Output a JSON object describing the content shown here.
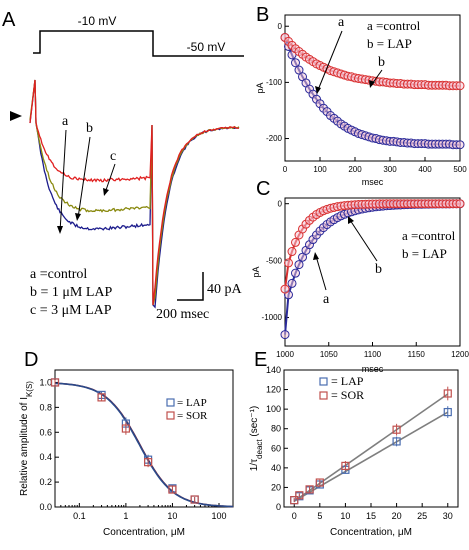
{
  "panels": {
    "A": {
      "label": "A",
      "protocol": {
        "step_label": "-10 mV",
        "hold_label": "-50 mV"
      },
      "trace_labels": [
        "a",
        "b",
        "c"
      ],
      "legend": [
        "a =control",
        "b = 1 μM LAP",
        "c = 3 μM LAP"
      ],
      "scale_current": "40 pA",
      "scale_time": "200 msec",
      "colors": {
        "a": "#1c1c8c",
        "b": "#8a8a10",
        "c": "#e02020"
      }
    },
    "B": {
      "label": "B",
      "legend": [
        "a =control",
        "b = LAP"
      ],
      "curve_labels": [
        "a",
        "b"
      ]
    },
    "C": {
      "label": "C",
      "legend": [
        "a =control",
        "b = LAP"
      ],
      "curve_labels": [
        "a",
        "b"
      ]
    },
    "D": {
      "label": "D",
      "legend": [
        "LAP",
        "SOR"
      ]
    },
    "E": {
      "label": "E",
      "legend": [
        "LAP",
        "SOR"
      ]
    }
  },
  "chart_data": [
    {
      "panel": "B",
      "type": "scatter",
      "xlabel": "msec",
      "ylabel": "pA",
      "xlim": [
        0,
        500
      ],
      "ylim": [
        -240,
        20
      ],
      "xticks": [
        0,
        100,
        200,
        300,
        400,
        500
      ],
      "yticks": [
        0,
        -100,
        -200
      ],
      "series": [
        {
          "name": "a",
          "color": "#2a2a9a",
          "x": [
            0,
            10,
            20,
            30,
            40,
            50,
            60,
            70,
            80,
            90,
            100,
            110,
            120,
            130,
            140,
            150,
            160,
            170,
            180,
            190,
            200,
            210,
            220,
            230,
            240,
            250,
            260,
            270,
            280,
            290,
            300,
            310,
            320,
            330,
            340,
            350,
            360,
            370,
            380,
            390,
            400,
            410,
            420,
            430,
            440,
            450,
            460,
            470,
            480,
            490,
            500
          ],
          "y": [
            -20,
            -36,
            -51,
            -65,
            -78,
            -90,
            -101,
            -112,
            -121,
            -130,
            -138,
            -146,
            -152,
            -159,
            -164,
            -169,
            -174,
            -178,
            -182,
            -185,
            -188,
            -191,
            -193,
            -195,
            -197,
            -199,
            -200,
            -202,
            -203,
            -204,
            -205,
            -205,
            -206,
            -207,
            -207,
            -208,
            -208,
            -209,
            -209,
            -209,
            -209,
            -210,
            -210,
            -210,
            -210,
            -210,
            -210,
            -210,
            -211,
            -211,
            -211
          ]
        },
        {
          "name": "b",
          "color": "#d93030",
          "x": [
            0,
            10,
            20,
            30,
            40,
            50,
            60,
            70,
            80,
            90,
            100,
            110,
            120,
            130,
            140,
            150,
            160,
            170,
            180,
            190,
            200,
            210,
            220,
            230,
            240,
            250,
            260,
            270,
            280,
            290,
            300,
            310,
            320,
            330,
            340,
            350,
            360,
            370,
            380,
            390,
            400,
            410,
            420,
            430,
            440,
            450,
            460,
            470,
            480,
            490,
            500
          ],
          "y": [
            -20,
            -27,
            -34,
            -40,
            -45,
            -50,
            -55,
            -59,
            -63,
            -67,
            -70,
            -73,
            -76,
            -79,
            -81,
            -83,
            -85,
            -87,
            -89,
            -90,
            -92,
            -93,
            -94,
            -95,
            -96,
            -97,
            -98,
            -99,
            -99,
            -100,
            -101,
            -101,
            -102,
            -102,
            -103,
            -103,
            -103,
            -104,
            -104,
            -104,
            -104,
            -105,
            -105,
            -105,
            -105,
            -105,
            -105,
            -106,
            -106,
            -106,
            -106
          ]
        }
      ]
    },
    {
      "panel": "C",
      "type": "scatter",
      "xlabel": "msec",
      "ylabel": "pA",
      "xlim": [
        1000,
        1200
      ],
      "ylim": [
        -1250,
        50
      ],
      "xticks": [
        1000,
        1050,
        1100,
        1150,
        1200
      ],
      "yticks": [
        0,
        -500,
        -1000
      ],
      "series": [
        {
          "name": "a",
          "color": "#2a2a9a",
          "x": [
            1000,
            1004,
            1008,
            1012,
            1016,
            1020,
            1024,
            1028,
            1032,
            1036,
            1040,
            1044,
            1048,
            1052,
            1056,
            1060,
            1064,
            1068,
            1072,
            1076,
            1080,
            1084,
            1088,
            1092,
            1096,
            1100,
            1104,
            1108,
            1112,
            1116,
            1120,
            1124,
            1128,
            1132,
            1136,
            1140,
            1144,
            1148,
            1152,
            1156,
            1160,
            1164,
            1168,
            1172,
            1176,
            1180,
            1184,
            1188,
            1192,
            1196,
            1200
          ],
          "y": [
            -1150,
            -800,
            -700,
            -610,
            -535,
            -470,
            -410,
            -360,
            -315,
            -275,
            -240,
            -210,
            -183,
            -160,
            -140,
            -122,
            -106,
            -93,
            -81,
            -71,
            -62,
            -54,
            -47,
            -41,
            -36,
            -31,
            -27,
            -24,
            -21,
            -18,
            -16,
            -14,
            -12,
            -11,
            -9,
            -8,
            -7,
            -6,
            -5,
            -5,
            -4,
            -4,
            -3,
            -3,
            -2,
            -2,
            -2,
            -2,
            -1,
            -1,
            -1
          ]
        },
        {
          "name": "b",
          "color": "#d93030",
          "x": [
            1000,
            1004,
            1008,
            1012,
            1016,
            1020,
            1024,
            1028,
            1032,
            1036,
            1040,
            1044,
            1048,
            1052,
            1056,
            1060,
            1064,
            1068,
            1072,
            1076,
            1080,
            1084,
            1088,
            1092,
            1096,
            1100,
            1104,
            1108,
            1112,
            1116,
            1120,
            1124,
            1128,
            1132,
            1136,
            1140,
            1144,
            1148,
            1152,
            1156,
            1160,
            1164,
            1168,
            1172,
            1176,
            1180,
            1184,
            1188,
            1192,
            1196,
            1200
          ],
          "y": [
            -750,
            -520,
            -420,
            -340,
            -275,
            -222,
            -180,
            -146,
            -118,
            -95,
            -77,
            -62,
            -50,
            -40,
            -33,
            -26,
            -21,
            -17,
            -14,
            -11,
            -9,
            -7,
            -6,
            -5,
            -4,
            -3,
            -3,
            -2,
            -2,
            -1,
            -1,
            -1,
            -1,
            -1,
            0,
            0,
            0,
            0,
            0,
            0,
            0,
            0,
            0,
            0,
            0,
            0,
            0,
            0,
            0,
            0,
            0
          ]
        }
      ]
    },
    {
      "panel": "D",
      "type": "scatter",
      "xlabel": "Concentration, μM",
      "ylabel": "Relative amplitude of I",
      "ylabel_sub": "K(S)",
      "xscale": "log",
      "xlim": [
        0.03,
        200
      ],
      "ylim": [
        0,
        1.1
      ],
      "xticks": [
        0.1,
        1,
        10,
        100
      ],
      "xticklabels": [
        "0.1",
        "1",
        "10",
        "100"
      ],
      "yticks": [
        0,
        0.2,
        0.4,
        0.6,
        0.8,
        1.0
      ],
      "yticklabels": [
        "0.0",
        "0.2",
        "0.4",
        "0.6",
        "0.8",
        "1.0"
      ],
      "series": [
        {
          "name": "LAP",
          "color": "#4a6db0",
          "x": [
            0.03,
            0.3,
            1,
            3,
            10,
            30
          ],
          "y": [
            1.0,
            0.9,
            0.67,
            0.38,
            0.15,
            0.06
          ],
          "err": [
            0.02,
            0.03,
            0.05,
            0.04,
            0.03,
            0.02
          ]
        },
        {
          "name": "SOR",
          "color": "#c0504d",
          "x": [
            0.03,
            0.3,
            1,
            3,
            10,
            30
          ],
          "y": [
            1.0,
            0.88,
            0.63,
            0.36,
            0.14,
            0.06
          ],
          "err": [
            0.02,
            0.03,
            0.05,
            0.04,
            0.03,
            0.02
          ]
        }
      ],
      "fits": [
        {
          "color": "#6a1f3c",
          "ic50": 2.0,
          "hill": 1.2
        },
        {
          "color": "#2a4a8a",
          "ic50": 1.95,
          "hill": 1.2
        }
      ]
    },
    {
      "panel": "E",
      "type": "scatter",
      "xlabel": "Concentration, μM",
      "ylabel": "1/τ",
      "ylabel_sub": "deact",
      "ylabel_unit": " (sec⁻¹)",
      "xlim": [
        -2,
        32
      ],
      "ylim": [
        0,
        140
      ],
      "xticks": [
        0,
        5,
        10,
        15,
        20,
        25,
        30
      ],
      "yticks": [
        0,
        20,
        40,
        60,
        80,
        100,
        120,
        140
      ],
      "series": [
        {
          "name": "LAP",
          "color": "#4a6db0",
          "x": [
            0,
            1,
            3,
            5,
            10,
            20,
            30
          ],
          "y": [
            7,
            11,
            17,
            23,
            38,
            67,
            97
          ],
          "err": [
            2,
            2,
            3,
            3,
            4,
            5,
            6
          ]
        },
        {
          "name": "SOR",
          "color": "#c0504d",
          "x": [
            0,
            1,
            3,
            5,
            10,
            20,
            30
          ],
          "y": [
            7,
            12,
            18,
            25,
            42,
            79,
            116
          ],
          "err": [
            2,
            2,
            3,
            3,
            5,
            6,
            7
          ]
        }
      ],
      "fits": [
        {
          "color": "#7f7f7f",
          "slope": 3.03,
          "intercept": 6
        },
        {
          "color": "#7f7f7f",
          "slope": 3.65,
          "intercept": 6
        }
      ]
    }
  ]
}
